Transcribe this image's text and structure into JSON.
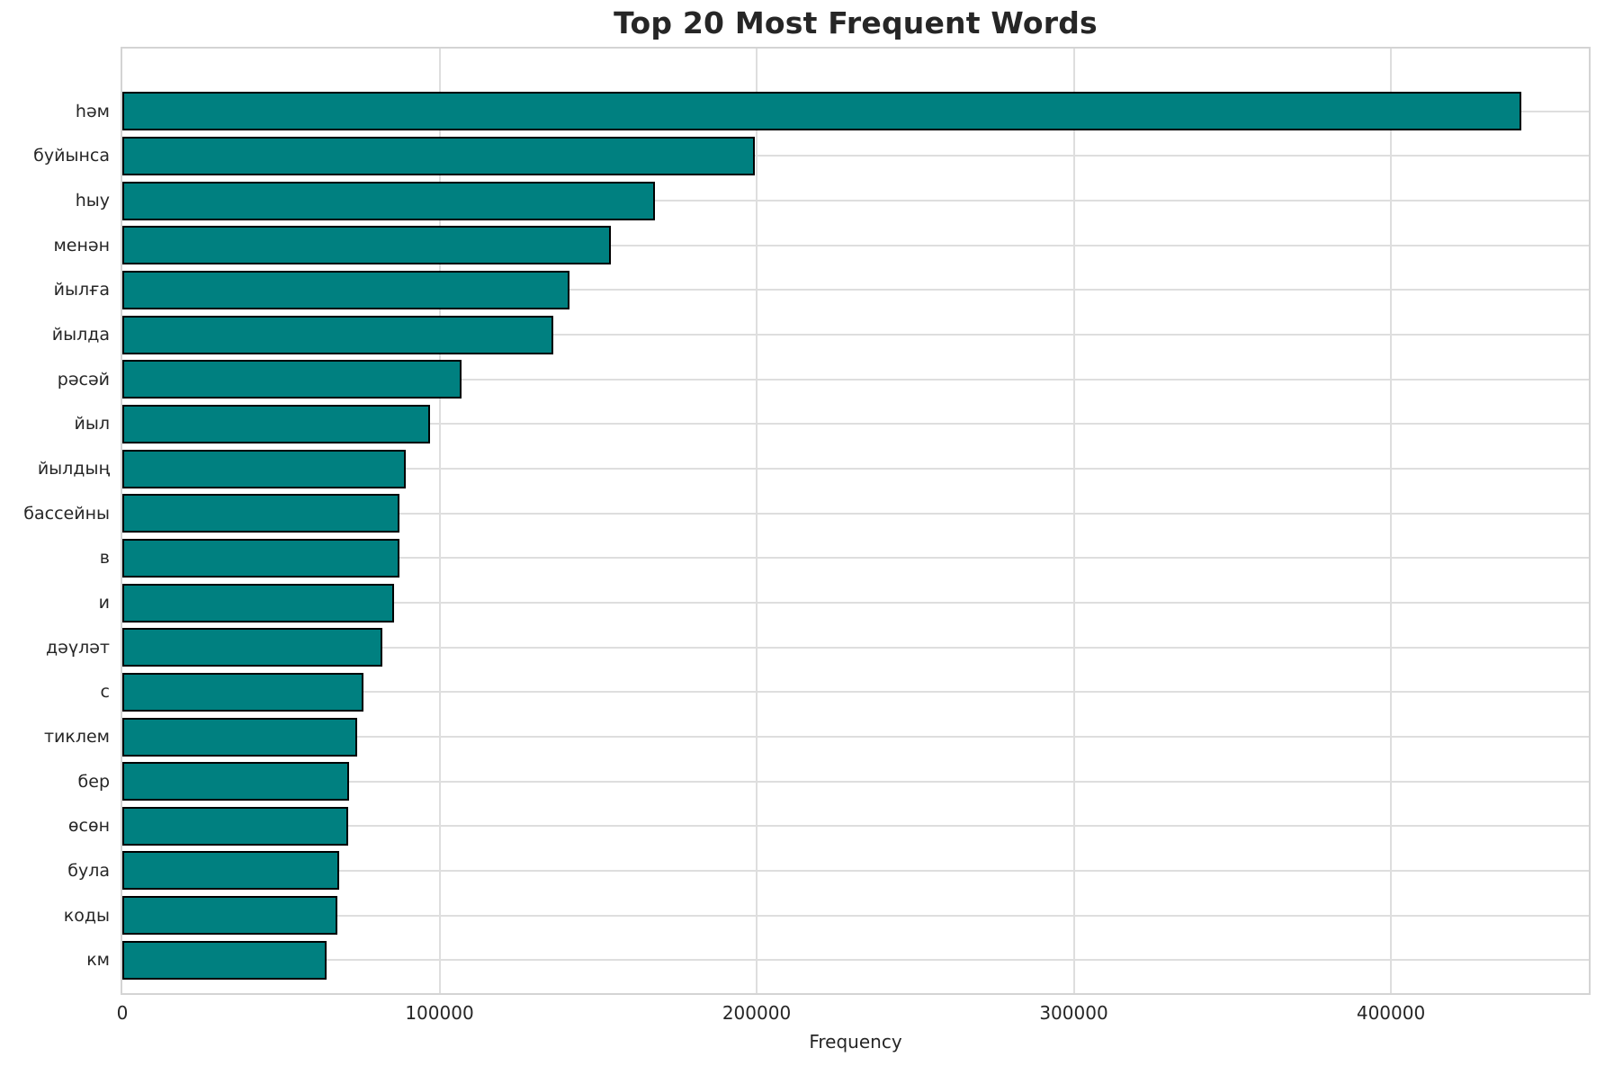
{
  "chart_data": {
    "type": "bar",
    "orientation": "horizontal",
    "title": "Top 20 Most Frequent Words",
    "xlabel": "Frequency",
    "ylabel": "",
    "categories": [
      "һәм",
      "буйынса",
      "һыу",
      "менән",
      "йылға",
      "йылда",
      "рәсәй",
      "йыл",
      "йылдың",
      "бассейны",
      "в",
      "и",
      "дәүләт",
      "с",
      "тиклем",
      "бер",
      "өсөн",
      "була",
      "коды",
      "км"
    ],
    "values": [
      441000,
      199500,
      168000,
      154000,
      141000,
      136000,
      107000,
      97000,
      89500,
      87500,
      87400,
      85600,
      82000,
      76000,
      74000,
      71600,
      71300,
      68400,
      67800,
      64300
    ],
    "xticks": [
      0,
      100000,
      200000,
      300000,
      400000
    ],
    "xlim": [
      0,
      462400
    ],
    "grid": true,
    "legend": null,
    "colors": {
      "bar_fill": "#008080",
      "bar_edge": "#000000",
      "grid_line": "#dedede",
      "spine": "#d4d4d4",
      "text": "#262626",
      "background": "#ffffff"
    }
  }
}
